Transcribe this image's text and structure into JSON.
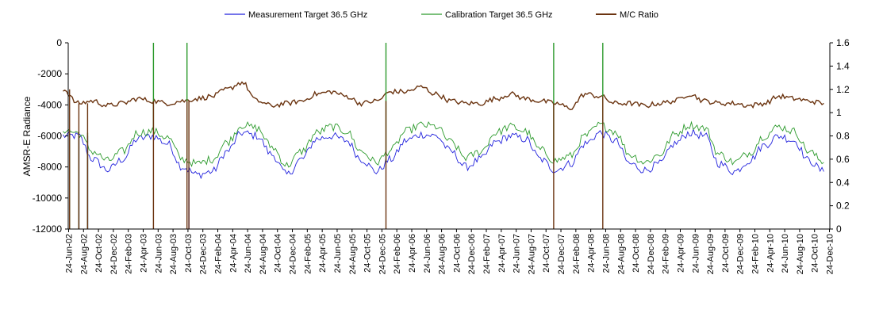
{
  "chart_data": {
    "type": "line",
    "title": "",
    "ylabel": "AMSR-E Radiance",
    "y2label": "",
    "xlabel": "",
    "ylim": [
      -12000,
      0
    ],
    "y_ticks": [
      "0",
      "-2000",
      "-4000",
      "-6000",
      "-8000",
      "-10000",
      "-12000"
    ],
    "y2lim": [
      0,
      1.6
    ],
    "y2_ticks": [
      "1.6",
      "1.4",
      "1.2",
      "1",
      "0.8",
      "0.6",
      "0.4",
      "0.2",
      "0"
    ],
    "grid": false,
    "legend_position": "top",
    "x_tick_labels": [
      "24-Jun-02",
      "24-Aug-02",
      "24-Oct-02",
      "24-Dec-02",
      "24-Feb-03",
      "24-Apr-03",
      "24-Jun-03",
      "24-Aug-03",
      "24-Oct-03",
      "24-Dec-03",
      "24-Feb-04",
      "24-Apr-04",
      "24-Jun-04",
      "24-Aug-04",
      "24-Oct-04",
      "24-Dec-04",
      "24-Feb-05",
      "24-Apr-05",
      "24-Jun-05",
      "24-Aug-05",
      "24-Oct-05",
      "24-Dec-05",
      "24-Feb-06",
      "24-Apr-06",
      "24-Jun-06",
      "24-Aug-06",
      "24-Oct-06",
      "24-Dec-06",
      "24-Feb-07",
      "24-Apr-07",
      "24-Jun-07",
      "24-Aug-07",
      "24-Oct-07",
      "24-Dec-07",
      "24-Feb-08",
      "24-Apr-08",
      "24-Jun-08",
      "24-Aug-08",
      "24-Oct-08",
      "24-Dec-08",
      "24-Feb-09",
      "24-Apr-09",
      "24-Jun-09",
      "24-Aug-09",
      "24-Oct-09",
      "24-Dec-09",
      "24-Feb-10",
      "24-Apr-10",
      "24-Jun-10",
      "24-Aug-10",
      "24-Oct-10",
      "24-Dec-10"
    ],
    "series": [
      {
        "name": "Measurement Target 36.5 GHz",
        "axis": "left",
        "color": "#2222dd",
        "x": [
          "2002-06",
          "2002-08",
          "2002-10",
          "2002-12",
          "2003-02",
          "2003-04",
          "2003-06",
          "2003-08",
          "2003-10",
          "2003-12",
          "2004-02",
          "2004-04",
          "2004-06",
          "2004-08",
          "2004-10",
          "2004-12",
          "2005-02",
          "2005-04",
          "2005-06",
          "2005-08",
          "2005-10",
          "2005-12",
          "2006-02",
          "2006-04",
          "2006-06",
          "2006-08",
          "2006-10",
          "2006-12",
          "2007-02",
          "2007-04",
          "2007-06",
          "2007-08",
          "2007-10",
          "2007-12",
          "2008-02",
          "2008-04",
          "2008-06",
          "2008-08",
          "2008-10",
          "2008-12",
          "2009-02",
          "2009-04",
          "2009-06",
          "2009-08",
          "2009-10",
          "2009-12",
          "2010-02",
          "2010-04",
          "2010-06",
          "2010-08",
          "2010-10",
          "2010-12"
        ],
        "y": [
          -6000,
          -6000,
          -7500,
          -8200,
          -7500,
          -6200,
          -6000,
          -6500,
          -8000,
          -8500,
          -8300,
          -7000,
          -5800,
          -6000,
          -7200,
          -8500,
          -7500,
          -6200,
          -6000,
          -6300,
          -7500,
          -8300,
          -7500,
          -6300,
          -5900,
          -6000,
          -7000,
          -8000,
          -7500,
          -6400,
          -6000,
          -6200,
          -7500,
          -8200,
          -7800,
          -6500,
          -5800,
          -6300,
          -7800,
          -8200,
          -7800,
          -6500,
          -5800,
          -6000,
          -7800,
          -8300,
          -7600,
          -6600,
          -6000,
          -6300,
          -7600,
          -8300
        ]
      },
      {
        "name": "Calibration Target 36.5 GHz",
        "axis": "left",
        "color": "#2c9a2c",
        "x": [
          "2002-06",
          "2002-08",
          "2002-10",
          "2002-12",
          "2003-02",
          "2003-04",
          "2003-06",
          "2003-08",
          "2003-10",
          "2003-12",
          "2004-02",
          "2004-04",
          "2004-06",
          "2004-08",
          "2004-10",
          "2004-12",
          "2005-02",
          "2005-04",
          "2005-06",
          "2005-08",
          "2005-10",
          "2005-12",
          "2006-02",
          "2006-04",
          "2006-06",
          "2006-08",
          "2006-10",
          "2006-12",
          "2007-02",
          "2007-04",
          "2007-06",
          "2007-08",
          "2007-10",
          "2007-12",
          "2008-02",
          "2008-04",
          "2008-06",
          "2008-08",
          "2008-10",
          "2008-12",
          "2009-02",
          "2009-04",
          "2009-06",
          "2009-08",
          "2009-10",
          "2009-12",
          "2010-02",
          "2010-04",
          "2010-06",
          "2010-08",
          "2010-10",
          "2010-12"
        ],
        "y": [
          -5600,
          -5800,
          -7000,
          -7600,
          -7000,
          -5800,
          -5700,
          -6100,
          -7500,
          -7800,
          -7500,
          -6400,
          -5300,
          -5500,
          -6700,
          -7900,
          -7000,
          -5800,
          -5400,
          -5700,
          -7000,
          -7700,
          -6900,
          -5700,
          -5300,
          -5400,
          -6400,
          -7400,
          -7000,
          -5800,
          -5400,
          -5700,
          -6900,
          -7600,
          -7300,
          -6000,
          -5300,
          -5700,
          -7200,
          -7700,
          -7200,
          -5900,
          -5300,
          -5500,
          -7200,
          -7700,
          -7100,
          -6000,
          -5400,
          -5700,
          -7000,
          -7700
        ]
      },
      {
        "name": "M/C Ratio",
        "axis": "right",
        "color": "#6b3410",
        "x": [
          "2002-06",
          "2002-08",
          "2002-10",
          "2002-12",
          "2003-02",
          "2003-04",
          "2003-06",
          "2003-08",
          "2003-10",
          "2003-12",
          "2004-02",
          "2004-04",
          "2004-06",
          "2004-08",
          "2004-10",
          "2004-12",
          "2005-02",
          "2005-04",
          "2005-06",
          "2005-08",
          "2005-10",
          "2005-12",
          "2006-02",
          "2006-04",
          "2006-06",
          "2006-08",
          "2006-10",
          "2006-12",
          "2007-02",
          "2007-04",
          "2007-06",
          "2007-08",
          "2007-10",
          "2007-12",
          "2008-02",
          "2008-04",
          "2008-06",
          "2008-08",
          "2008-10",
          "2008-12",
          "2009-02",
          "2009-04",
          "2009-06",
          "2009-08",
          "2009-10",
          "2009-12",
          "2010-02",
          "2010-04",
          "2010-06",
          "2010-08",
          "2010-10",
          "2010-12"
        ],
        "y": [
          1.2,
          1.08,
          1.1,
          1.06,
          1.08,
          1.12,
          1.1,
          1.08,
          1.1,
          1.12,
          1.14,
          1.2,
          1.26,
          1.1,
          1.06,
          1.08,
          1.1,
          1.16,
          1.18,
          1.14,
          1.08,
          1.1,
          1.18,
          1.18,
          1.22,
          1.16,
          1.1,
          1.08,
          1.08,
          1.12,
          1.16,
          1.12,
          1.1,
          1.08,
          1.04,
          1.16,
          1.14,
          1.08,
          1.08,
          1.06,
          1.08,
          1.1,
          1.16,
          1.1,
          1.08,
          1.08,
          1.06,
          1.08,
          1.14,
          1.12,
          1.1,
          1.08
        ]
      }
    ],
    "dropouts": [
      {
        "date": "2002-06-28",
        "series": [
          "Measurement Target 36.5 GHz",
          "Calibration Target 36.5 GHz",
          "M/C Ratio"
        ],
        "left_value": -12000,
        "right_value": 0
      },
      {
        "date": "2002-08-05",
        "series": [
          "Measurement Target 36.5 GHz",
          "Calibration Target 36.5 GHz",
          "M/C Ratio"
        ],
        "left_value": -12000,
        "right_value": 0
      },
      {
        "date": "2002-09-10",
        "series": [
          "Measurement Target 36.5 GHz",
          "Calibration Target 36.5 GHz",
          "M/C Ratio"
        ],
        "left_value": -12000,
        "right_value": 0
      },
      {
        "date": "2003-06-05",
        "series": [
          "Calibration Target 36.5 GHz",
          "M/C Ratio"
        ],
        "left_value": 0,
        "right_value": 0
      },
      {
        "date": "2003-10-20",
        "series": [
          "Calibration Target 36.5 GHz",
          "M/C Ratio"
        ],
        "left_value": 0,
        "right_value": 0
      },
      {
        "date": "2003-10-28",
        "series": [
          "Measurement Target 36.5 GHz",
          "M/C Ratio"
        ],
        "left_value": -12000,
        "right_value": 0
      },
      {
        "date": "2006-01-10",
        "series": [
          "Calibration Target 36.5 GHz",
          "M/C Ratio"
        ],
        "left_value": 0,
        "right_value": 0
      },
      {
        "date": "2007-11-25",
        "series": [
          "Calibration Target 36.5 GHz",
          "M/C Ratio"
        ],
        "left_value": 0,
        "right_value": 0
      },
      {
        "date": "2008-06-12",
        "series": [
          "Calibration Target 36.5 GHz",
          "M/C Ratio"
        ],
        "left_value": 0,
        "right_value": 0
      }
    ]
  }
}
